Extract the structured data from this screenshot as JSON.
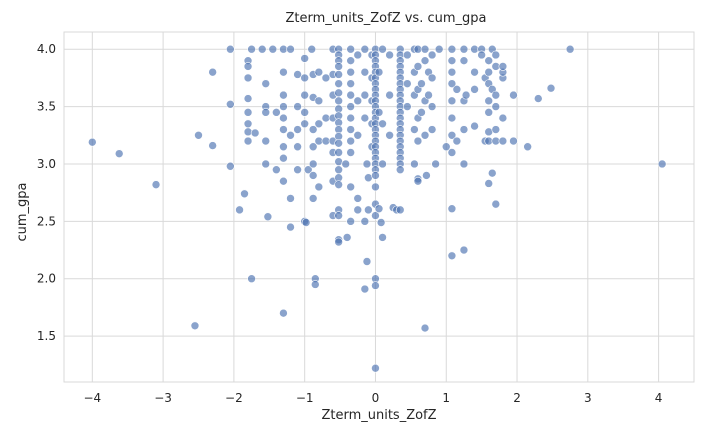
{
  "chart_data": {
    "type": "scatter",
    "title": "Zterm_units_ZofZ vs. cum_gpa",
    "xlabel": "Zterm_units_ZofZ",
    "ylabel": "cum_gpa",
    "xlim": [
      -4.4,
      4.5
    ],
    "ylim": [
      1.1,
      4.15
    ],
    "xticks": [
      -4,
      -3,
      -2,
      -1,
      0,
      1,
      2,
      3,
      4
    ],
    "yticks": [
      1.5,
      2.0,
      2.5,
      3.0,
      3.5,
      4.0
    ],
    "xtick_labels": [
      "−4",
      "−3",
      "−2",
      "−1",
      "0",
      "1",
      "2",
      "3",
      "4"
    ],
    "ytick_labels": [
      "1.5",
      "2.0",
      "2.5",
      "3.0",
      "3.5",
      "4.0"
    ],
    "grid": true,
    "point_color": "#4c72b0",
    "series": [
      {
        "points": [
          [
            -4.0,
            3.19
          ],
          [
            -3.62,
            3.09
          ],
          [
            -3.1,
            2.82
          ],
          [
            -2.55,
            1.59
          ],
          [
            -2.5,
            3.25
          ],
          [
            -2.3,
            3.8
          ],
          [
            -2.3,
            3.16
          ],
          [
            -2.05,
            4.0
          ],
          [
            -2.05,
            3.52
          ],
          [
            -2.05,
            2.98
          ],
          [
            -1.92,
            2.6
          ],
          [
            -1.85,
            2.74
          ],
          [
            -1.75,
            2.0
          ],
          [
            -1.8,
            3.9
          ],
          [
            -1.8,
            3.85
          ],
          [
            -1.8,
            3.75
          ],
          [
            -1.8,
            3.57
          ],
          [
            -1.8,
            3.45
          ],
          [
            -1.8,
            3.35
          ],
          [
            -1.8,
            3.28
          ],
          [
            -1.8,
            3.2
          ],
          [
            -1.75,
            4.0
          ],
          [
            -1.7,
            3.27
          ],
          [
            -1.6,
            4.0
          ],
          [
            -1.55,
            3.7
          ],
          [
            -1.55,
            3.5
          ],
          [
            -1.55,
            3.45
          ],
          [
            -1.55,
            3.2
          ],
          [
            -1.55,
            3.0
          ],
          [
            -1.52,
            2.54
          ],
          [
            -1.45,
            4.0
          ],
          [
            -1.4,
            3.45
          ],
          [
            -1.4,
            2.95
          ],
          [
            -1.3,
            4.0
          ],
          [
            -1.3,
            3.8
          ],
          [
            -1.3,
            3.6
          ],
          [
            -1.3,
            3.5
          ],
          [
            -1.3,
            3.4
          ],
          [
            -1.3,
            3.3
          ],
          [
            -1.3,
            3.15
          ],
          [
            -1.3,
            3.05
          ],
          [
            -1.3,
            2.85
          ],
          [
            -1.3,
            1.7
          ],
          [
            -1.2,
            4.0
          ],
          [
            -1.2,
            3.25
          ],
          [
            -1.2,
            2.7
          ],
          [
            -1.2,
            2.45
          ],
          [
            -1.1,
            3.78
          ],
          [
            -1.1,
            3.5
          ],
          [
            -1.1,
            3.3
          ],
          [
            -1.1,
            3.15
          ],
          [
            -1.1,
            2.95
          ],
          [
            -1.0,
            3.92
          ],
          [
            -1.0,
            3.75
          ],
          [
            -1.0,
            3.6
          ],
          [
            -1.0,
            3.45
          ],
          [
            -1.0,
            3.35
          ],
          [
            -1.0,
            2.5
          ],
          [
            -0.98,
            2.49
          ],
          [
            -0.95,
            2.95
          ],
          [
            -0.9,
            4.0
          ],
          [
            -0.88,
            3.78
          ],
          [
            -0.88,
            3.58
          ],
          [
            -0.88,
            3.3
          ],
          [
            -0.88,
            3.15
          ],
          [
            -0.88,
            3.0
          ],
          [
            -0.88,
            2.9
          ],
          [
            -0.88,
            2.7
          ],
          [
            -0.85,
            2.0
          ],
          [
            -0.85,
            1.95
          ],
          [
            -0.8,
            3.8
          ],
          [
            -0.8,
            3.55
          ],
          [
            -0.8,
            3.35
          ],
          [
            -0.8,
            3.2
          ],
          [
            -0.8,
            2.8
          ],
          [
            -0.7,
            3.75
          ],
          [
            -0.7,
            3.4
          ],
          [
            -0.7,
            3.2
          ],
          [
            -0.6,
            4.0
          ],
          [
            -0.6,
            3.78
          ],
          [
            -0.6,
            3.6
          ],
          [
            -0.6,
            3.4
          ],
          [
            -0.6,
            3.2
          ],
          [
            -0.6,
            3.1
          ],
          [
            -0.6,
            2.85
          ],
          [
            -0.6,
            2.55
          ],
          [
            -0.52,
            4.0
          ],
          [
            -0.52,
            3.95
          ],
          [
            -0.52,
            3.9
          ],
          [
            -0.52,
            3.85
          ],
          [
            -0.52,
            3.78
          ],
          [
            -0.52,
            3.7
          ],
          [
            -0.52,
            3.62
          ],
          [
            -0.52,
            3.55
          ],
          [
            -0.52,
            3.48
          ],
          [
            -0.52,
            3.42
          ],
          [
            -0.52,
            3.36
          ],
          [
            -0.52,
            3.3
          ],
          [
            -0.52,
            3.24
          ],
          [
            -0.52,
            3.18
          ],
          [
            -0.52,
            3.1
          ],
          [
            -0.52,
            3.02
          ],
          [
            -0.52,
            2.95
          ],
          [
            -0.52,
            2.88
          ],
          [
            -0.52,
            2.82
          ],
          [
            -0.52,
            2.6
          ],
          [
            -0.52,
            2.55
          ],
          [
            -0.52,
            2.34
          ],
          [
            -0.52,
            2.32
          ],
          [
            -0.42,
            3.0
          ],
          [
            -0.4,
            2.36
          ],
          [
            -0.35,
            4.0
          ],
          [
            -0.35,
            3.9
          ],
          [
            -0.35,
            3.8
          ],
          [
            -0.35,
            3.7
          ],
          [
            -0.35,
            3.6
          ],
          [
            -0.35,
            3.5
          ],
          [
            -0.35,
            3.4
          ],
          [
            -0.35,
            3.3
          ],
          [
            -0.35,
            3.2
          ],
          [
            -0.35,
            3.1
          ],
          [
            -0.35,
            2.8
          ],
          [
            -0.35,
            2.5
          ],
          [
            -0.25,
            3.95
          ],
          [
            -0.25,
            3.55
          ],
          [
            -0.25,
            3.25
          ],
          [
            -0.25,
            2.7
          ],
          [
            -0.25,
            2.6
          ],
          [
            -0.15,
            4.0
          ],
          [
            -0.15,
            3.8
          ],
          [
            -0.15,
            3.6
          ],
          [
            -0.15,
            3.4
          ],
          [
            -0.15,
            2.5
          ],
          [
            -0.15,
            1.91
          ],
          [
            -0.12,
            2.15
          ],
          [
            -0.12,
            3.0
          ],
          [
            -0.1,
            2.88
          ],
          [
            -0.1,
            2.6
          ],
          [
            -0.05,
            3.95
          ],
          [
            -0.05,
            3.75
          ],
          [
            -0.05,
            3.55
          ],
          [
            -0.05,
            3.35
          ],
          [
            -0.05,
            3.15
          ],
          [
            0.0,
            4.0
          ],
          [
            0.0,
            3.95
          ],
          [
            0.0,
            3.9
          ],
          [
            0.0,
            3.85
          ],
          [
            0.0,
            3.8
          ],
          [
            0.0,
            3.75
          ],
          [
            0.0,
            3.7
          ],
          [
            0.0,
            3.65
          ],
          [
            0.0,
            3.6
          ],
          [
            0.0,
            3.55
          ],
          [
            0.0,
            3.5
          ],
          [
            0.0,
            3.45
          ],
          [
            0.0,
            3.4
          ],
          [
            0.0,
            3.35
          ],
          [
            0.0,
            3.3
          ],
          [
            0.0,
            3.25
          ],
          [
            0.0,
            3.2
          ],
          [
            0.0,
            3.15
          ],
          [
            0.0,
            3.1
          ],
          [
            0.0,
            3.05
          ],
          [
            0.0,
            3.0
          ],
          [
            0.0,
            2.95
          ],
          [
            0.0,
            2.9
          ],
          [
            0.0,
            2.8
          ],
          [
            0.0,
            2.65
          ],
          [
            0.0,
            2.55
          ],
          [
            0.0,
            2.0
          ],
          [
            0.0,
            1.94
          ],
          [
            0.0,
            1.22
          ],
          [
            0.05,
            3.8
          ],
          [
            0.05,
            3.45
          ],
          [
            0.05,
            2.61
          ],
          [
            0.08,
            2.49
          ],
          [
            0.1,
            2.36
          ],
          [
            0.1,
            4.0
          ],
          [
            0.1,
            3.35
          ],
          [
            0.1,
            3.0
          ],
          [
            0.2,
            3.95
          ],
          [
            0.2,
            3.6
          ],
          [
            0.2,
            3.25
          ],
          [
            0.25,
            2.62
          ],
          [
            0.3,
            2.6
          ],
          [
            0.35,
            4.0
          ],
          [
            0.35,
            3.95
          ],
          [
            0.35,
            3.9
          ],
          [
            0.35,
            3.85
          ],
          [
            0.35,
            3.8
          ],
          [
            0.35,
            3.75
          ],
          [
            0.35,
            3.7
          ],
          [
            0.35,
            3.65
          ],
          [
            0.35,
            3.6
          ],
          [
            0.35,
            3.55
          ],
          [
            0.35,
            3.5
          ],
          [
            0.35,
            3.45
          ],
          [
            0.35,
            3.4
          ],
          [
            0.35,
            3.35
          ],
          [
            0.35,
            3.3
          ],
          [
            0.35,
            3.25
          ],
          [
            0.35,
            3.2
          ],
          [
            0.35,
            3.15
          ],
          [
            0.35,
            3.1
          ],
          [
            0.35,
            3.05
          ],
          [
            0.35,
            3.0
          ],
          [
            0.35,
            2.95
          ],
          [
            0.35,
            2.6
          ],
          [
            0.45,
            3.95
          ],
          [
            0.45,
            3.7
          ],
          [
            0.45,
            3.5
          ],
          [
            0.55,
            4.0
          ],
          [
            0.55,
            3.8
          ],
          [
            0.55,
            3.6
          ],
          [
            0.55,
            3.3
          ],
          [
            0.55,
            3.0
          ],
          [
            0.6,
            4.0
          ],
          [
            0.6,
            3.85
          ],
          [
            0.6,
            3.65
          ],
          [
            0.6,
            3.4
          ],
          [
            0.6,
            3.2
          ],
          [
            0.6,
            2.87
          ],
          [
            0.6,
            2.85
          ],
          [
            0.65,
            3.7
          ],
          [
            0.65,
            3.45
          ],
          [
            0.7,
            4.0
          ],
          [
            0.7,
            3.9
          ],
          [
            0.7,
            3.55
          ],
          [
            0.7,
            3.25
          ],
          [
            0.7,
            1.57
          ],
          [
            0.72,
            2.9
          ],
          [
            0.75,
            3.8
          ],
          [
            0.75,
            3.6
          ],
          [
            0.8,
            3.95
          ],
          [
            0.8,
            3.75
          ],
          [
            0.8,
            3.5
          ],
          [
            0.8,
            3.3
          ],
          [
            0.85,
            3.0
          ],
          [
            0.9,
            4.0
          ],
          [
            1.0,
            3.15
          ],
          [
            1.08,
            4.0
          ],
          [
            1.08,
            3.9
          ],
          [
            1.08,
            3.8
          ],
          [
            1.08,
            3.7
          ],
          [
            1.08,
            3.55
          ],
          [
            1.08,
            3.4
          ],
          [
            1.08,
            3.25
          ],
          [
            1.08,
            3.1
          ],
          [
            1.08,
            2.61
          ],
          [
            1.08,
            2.2
          ],
          [
            1.15,
            3.65
          ],
          [
            1.15,
            3.2
          ],
          [
            1.25,
            4.0
          ],
          [
            1.25,
            3.9
          ],
          [
            1.25,
            3.55
          ],
          [
            1.25,
            3.3
          ],
          [
            1.25,
            3.0
          ],
          [
            1.25,
            2.25
          ],
          [
            1.28,
            3.6
          ],
          [
            1.4,
            4.0
          ],
          [
            1.4,
            3.8
          ],
          [
            1.4,
            3.65
          ],
          [
            1.4,
            3.33
          ],
          [
            1.5,
            4.0
          ],
          [
            1.5,
            3.95
          ],
          [
            1.55,
            3.2
          ],
          [
            1.55,
            3.75
          ],
          [
            1.6,
            3.9
          ],
          [
            1.6,
            3.8
          ],
          [
            1.6,
            3.7
          ],
          [
            1.6,
            3.55
          ],
          [
            1.6,
            3.45
          ],
          [
            1.6,
            3.2
          ],
          [
            1.6,
            2.83
          ],
          [
            1.6,
            3.28
          ],
          [
            1.65,
            4.0
          ],
          [
            1.65,
            3.65
          ],
          [
            1.65,
            2.92
          ],
          [
            1.7,
            3.95
          ],
          [
            1.7,
            3.85
          ],
          [
            1.7,
            3.6
          ],
          [
            1.7,
            3.5
          ],
          [
            1.7,
            3.3
          ],
          [
            1.7,
            3.2
          ],
          [
            1.7,
            2.65
          ],
          [
            1.8,
            3.75
          ],
          [
            1.8,
            3.4
          ],
          [
            1.8,
            3.2
          ],
          [
            1.8,
            3.8
          ],
          [
            1.8,
            3.85
          ],
          [
            1.95,
            3.6
          ],
          [
            1.95,
            3.2
          ],
          [
            2.15,
            3.15
          ],
          [
            2.3,
            3.57
          ],
          [
            2.48,
            3.66
          ],
          [
            2.75,
            4.0
          ],
          [
            4.05,
            3.0
          ]
        ]
      }
    ]
  }
}
